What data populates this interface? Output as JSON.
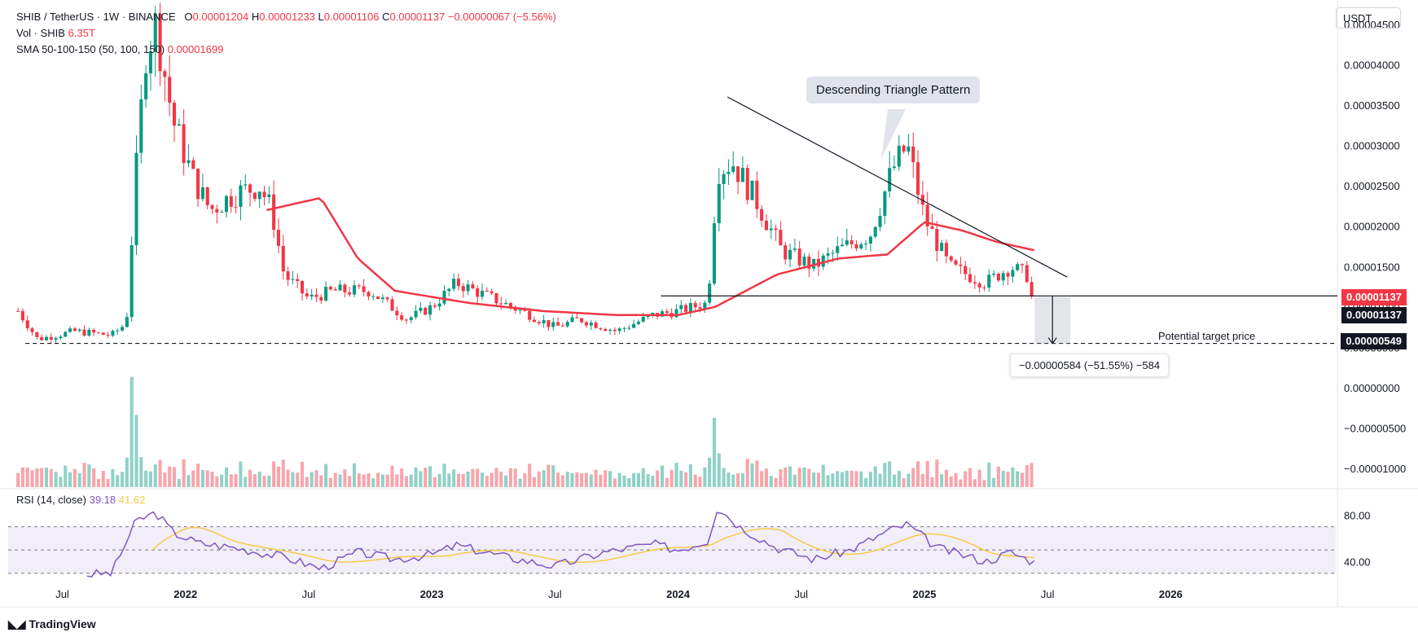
{
  "header": {
    "symbol": "SHIB / TetherUS · 1W · BINANCE",
    "o_label": "O",
    "o_value": "0.00001204",
    "h_label": "H",
    "h_value": "0.00001233",
    "l_label": "L",
    "l_value": "0.00001106",
    "c_label": "C",
    "c_value": "0.00001137",
    "change": "−0.00000067 (−5.56%)",
    "vol_label": "Vol · SHIB",
    "vol_value": "6.35T",
    "sma_label": "SMA 50-100-150 (50, 100, 150)",
    "sma_value": "0.00001699",
    "rsi_label": "RSI (14, close)",
    "rsi_value": "39.18",
    "rsi_ma_value": "41.62"
  },
  "currency_button": "USDT",
  "price_tags": {
    "current_red": "0.00001137",
    "current_black": "0.00001137",
    "target": "0.00000549"
  },
  "annotations": {
    "pattern_callout": "Descending Triangle Pattern",
    "target_label": "Potential target price",
    "measure": "−0.00000584 (−51.55%) −584"
  },
  "brand": "TradingView",
  "colors": {
    "up": "#089981",
    "down": "#f23645",
    "sma": "#f23645",
    "rsi": "#7e57c2",
    "rsi_ma": "#f7c948"
  },
  "chart_data": {
    "type": "candlestick",
    "price_axis_ticks": [
      "0.00004500",
      "0.00004000",
      "0.00003500",
      "0.00003000",
      "0.00002500",
      "0.00002000",
      "0.00001500",
      "0.00001000",
      "0.00000500",
      "0.00000000",
      "−0.00000500",
      "−0.00001000"
    ],
    "price_axis_values": [
      4.5e-05,
      4e-05,
      3.5e-05,
      3e-05,
      2.5e-05,
      2e-05,
      1.5e-05,
      1e-05,
      5e-06,
      0,
      -5e-06,
      -1e-05
    ],
    "ylim": [
      -1.25e-05,
      4.8e-05
    ],
    "rsi_axis_ticks": [
      "80.00",
      "40.00"
    ],
    "rsi_levels": [
      70,
      50,
      30
    ],
    "x_ticks": [
      "Jul",
      "2022",
      "Jul",
      "2023",
      "Jul",
      "2024",
      "Jul",
      "2025",
      "Jul",
      "2026"
    ],
    "x_tick_times": [
      2021.5,
      2022.0,
      2022.5,
      2023.0,
      2023.5,
      2024.0,
      2024.5,
      2025.0,
      2025.5,
      2026.0
    ],
    "xlim": [
      2021.28,
      2026.67
    ],
    "close_keypoints": [
      [
        2021.32,
        9.5e-06
      ],
      [
        2021.4,
        6e-06
      ],
      [
        2021.55,
        7e-06
      ],
      [
        2021.7,
        6.5e-06
      ],
      [
        2021.76,
        8e-06
      ],
      [
        2021.8,
        2.7e-05
      ],
      [
        2021.84,
        4.2e-05
      ],
      [
        2021.88,
        4.5e-05
      ],
      [
        2021.95,
        3.3e-05
      ],
      [
        2022.03,
        2.6e-05
      ],
      [
        2022.1,
        2.2e-05
      ],
      [
        2022.2,
        2.4e-05
      ],
      [
        2022.3,
        2.5e-05
      ],
      [
        2022.35,
        2.2e-05
      ],
      [
        2022.4,
        1.4e-05
      ],
      [
        2022.5,
        1.1e-05
      ],
      [
        2022.6,
        1.2e-05
      ],
      [
        2022.75,
        1.2e-05
      ],
      [
        2022.9,
        8.5e-06
      ],
      [
        2023.0,
        1e-05
      ],
      [
        2023.1,
        1.3e-05
      ],
      [
        2023.25,
        1.1e-05
      ],
      [
        2023.4,
        9e-06
      ],
      [
        2023.5,
        7.5e-06
      ],
      [
        2023.6,
        8.5e-06
      ],
      [
        2023.75,
        7e-06
      ],
      [
        2023.9,
        9e-06
      ],
      [
        2024.0,
        9.5e-06
      ],
      [
        2024.12,
        1.05e-05
      ],
      [
        2024.16,
        2.7e-05
      ],
      [
        2024.22,
        2.8e-05
      ],
      [
        2024.32,
        2.3e-05
      ],
      [
        2024.42,
        1.7e-05
      ],
      [
        2024.55,
        1.5e-05
      ],
      [
        2024.65,
        1.7e-05
      ],
      [
        2024.78,
        1.9e-05
      ],
      [
        2024.87,
        2.7e-05
      ],
      [
        2024.93,
        3e-05
      ],
      [
        2025.0,
        2.1e-05
      ],
      [
        2025.1,
        1.5e-05
      ],
      [
        2025.25,
        1.3e-05
      ],
      [
        2025.35,
        1.5e-05
      ],
      [
        2025.43,
        1.37e-05
      ],
      [
        2025.45,
        1.137e-05
      ]
    ],
    "sma50_keypoints": [
      [
        2022.33,
        2.2e-05
      ],
      [
        2022.55,
        2.35e-05
      ],
      [
        2022.7,
        1.6e-05
      ],
      [
        2022.85,
        1.2e-05
      ],
      [
        2023.15,
        1.05e-05
      ],
      [
        2023.45,
        9.5e-06
      ],
      [
        2023.75,
        9e-06
      ],
      [
        2024.0,
        9e-06
      ],
      [
        2024.15,
        1e-05
      ],
      [
        2024.4,
        1.4e-05
      ],
      [
        2024.65,
        1.6e-05
      ],
      [
        2024.85,
        1.65e-05
      ],
      [
        2025.0,
        2.05e-05
      ],
      [
        2025.15,
        1.95e-05
      ],
      [
        2025.3,
        1.8e-05
      ],
      [
        2025.45,
        1.7e-05
      ]
    ],
    "rsi_keypoints": [
      [
        2021.6,
        29
      ],
      [
        2021.7,
        30
      ],
      [
        2021.8,
        75
      ],
      [
        2021.88,
        82
      ],
      [
        2021.95,
        65
      ],
      [
        2022.05,
        56
      ],
      [
        2022.2,
        52
      ],
      [
        2022.4,
        44
      ],
      [
        2022.55,
        34
      ],
      [
        2022.7,
        48
      ],
      [
        2022.85,
        42
      ],
      [
        2023.0,
        46
      ],
      [
        2023.1,
        54
      ],
      [
        2023.3,
        44
      ],
      [
        2023.5,
        36
      ],
      [
        2023.7,
        48
      ],
      [
        2023.9,
        55
      ],
      [
        2024.0,
        50
      ],
      [
        2024.12,
        58
      ],
      [
        2024.16,
        87
      ],
      [
        2024.25,
        70
      ],
      [
        2024.4,
        52
      ],
      [
        2024.55,
        42
      ],
      [
        2024.7,
        50
      ],
      [
        2024.85,
        66
      ],
      [
        2024.93,
        72
      ],
      [
        2025.05,
        52
      ],
      [
        2025.25,
        40
      ],
      [
        2025.35,
        48
      ],
      [
        2025.45,
        39.18
      ]
    ],
    "triangle_upper": [
      [
        2024.2,
        3.6e-05
      ],
      [
        2025.58,
        1.37e-05
      ]
    ],
    "triangle_lower": [
      [
        2023.93,
        1.137e-05
      ],
      [
        2025.62,
        1.137e-05
      ]
    ],
    "target_level": 5.49e-06
  }
}
